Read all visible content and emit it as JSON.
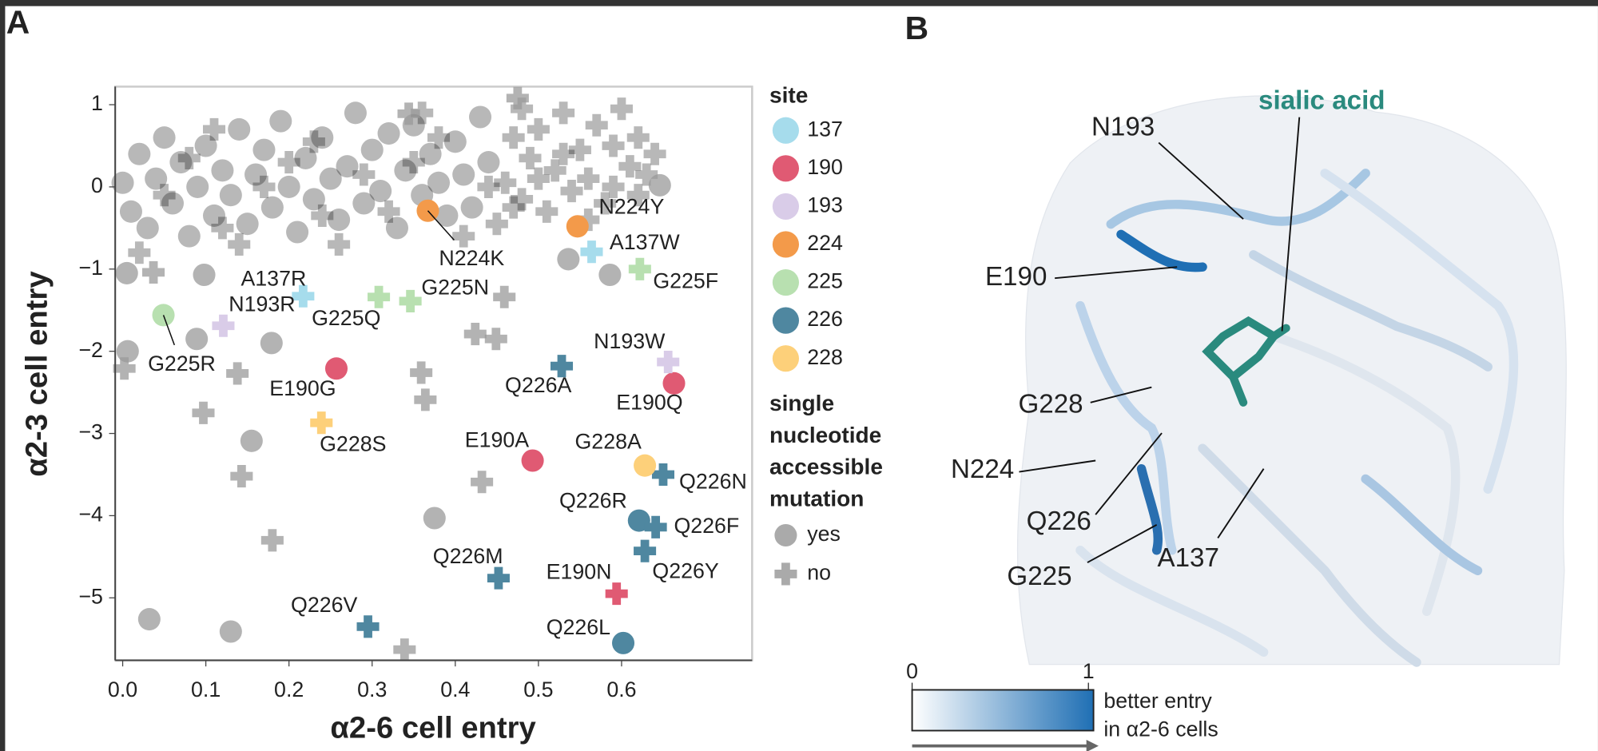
{
  "panel_a": {
    "label": "A"
  },
  "chart_data": {
    "type": "scatter",
    "xlabel": "α2-6 cell entry",
    "ylabel": "α2-3 cell entry",
    "xlim": [
      -0.009,
      0.757
    ],
    "ylim": [
      -5.76,
      1.22
    ],
    "xticks": [
      {
        "value": 0,
        "label": "0.0"
      },
      0.1,
      0.2,
      0.3,
      0.4,
      0.5,
      0.6
    ],
    "yticks": [
      1,
      0,
      {
        "value": -1,
        "label": "−1"
      },
      {
        "value": -2,
        "label": "−2"
      },
      {
        "value": -3,
        "label": "−3"
      },
      {
        "value": -4,
        "label": "−4"
      },
      {
        "value": -5,
        "label": "−5"
      }
    ],
    "series": [
      {
        "color": "#000000",
        "opacity": 0.28,
        "marker": "circle",
        "x": [
          0.0,
          0.01,
          0.02,
          0.03,
          0.04,
          0.05,
          0.06,
          0.07,
          0.08,
          0.09,
          0.1,
          0.11,
          0.12,
          0.13,
          0.14,
          0.15,
          0.16,
          0.17,
          0.18,
          0.19,
          0.2,
          0.21,
          0.22,
          0.23,
          0.24,
          0.25,
          0.26,
          0.27,
          0.28,
          0.29,
          0.3,
          0.31,
          0.32,
          0.33,
          0.34,
          0.35,
          0.36,
          0.37,
          0.38,
          0.39,
          0.4,
          0.41,
          0.42,
          0.43,
          0.44
        ],
        "y": [
          0.05,
          -0.3,
          0.4,
          -0.5,
          0.1,
          0.6,
          -0.2,
          0.3,
          -0.6,
          0.0,
          0.5,
          -0.35,
          0.2,
          -0.1,
          0.7,
          -0.45,
          0.15,
          0.45,
          -0.25,
          0.8,
          0.0,
          -0.55,
          0.35,
          -0.15,
          0.6,
          0.1,
          -0.4,
          0.25,
          0.9,
          -0.2,
          0.45,
          -0.05,
          0.65,
          -0.5,
          0.2,
          0.75,
          -0.1,
          0.4,
          0.05,
          -0.35,
          0.55,
          0.15,
          -0.25,
          0.85,
          0.3
        ]
      },
      {
        "color": "#000000",
        "opacity": 0.28,
        "marker": "plus",
        "x": [
          0.45,
          0.46,
          0.47,
          0.48,
          0.49,
          0.5,
          0.51,
          0.52,
          0.53,
          0.54,
          0.55,
          0.56,
          0.57,
          0.58,
          0.59,
          0.6,
          0.61,
          0.62,
          0.63,
          0.64,
          0.02,
          0.05,
          0.08,
          0.11,
          0.14,
          0.17,
          0.2,
          0.23,
          0.26,
          0.29,
          0.32,
          0.35,
          0.38,
          0.41,
          0.44,
          0.47,
          0.5,
          0.53,
          0.56,
          0.59,
          0.62,
          0.12,
          0.24,
          0.36,
          0.48
        ],
        "y": [
          -0.45,
          0.05,
          0.6,
          -0.15,
          0.35,
          0.7,
          -0.3,
          0.2,
          0.9,
          -0.05,
          0.45,
          0.1,
          0.75,
          -0.2,
          0.5,
          0.95,
          0.25,
          0.6,
          0.15,
          0.4,
          -0.8,
          -0.1,
          0.35,
          0.7,
          -0.7,
          0.0,
          0.3,
          0.55,
          -0.7,
          0.15,
          -0.3,
          0.3,
          0.6,
          -0.6,
          0.0,
          -0.25,
          0.1,
          0.4,
          -0.4,
          0.0,
          -0.1,
          -0.5,
          -0.35,
          0.9,
          0.95
        ]
      },
      {
        "color": "#999999",
        "opacity": 0.75,
        "marker": "circle",
        "x": [
          0.032,
          0.13,
          0.155,
          0.375,
          0.179,
          0.586,
          0.536,
          0.646,
          0.005,
          0.006,
          0.098,
          0.089
        ],
        "y": [
          -5.26,
          -5.41,
          -3.09,
          -4.03,
          -1.9,
          -1.07,
          -0.88,
          0.02,
          -1.05,
          -2.0,
          -1.07,
          -1.85
        ]
      },
      {
        "color": "#999999",
        "opacity": 0.75,
        "marker": "plus",
        "x": [
          0.18,
          0.143,
          0.432,
          0.339,
          0.364,
          0.359,
          0.449,
          0.424,
          0.459,
          0.475,
          0.097,
          0.138,
          0.002,
          0.037,
          0.344
        ],
        "y": [
          -4.3,
          -3.52,
          -3.59,
          -5.63,
          -2.59,
          -2.26,
          -1.85,
          -1.79,
          -1.34,
          1.08,
          -2.75,
          -2.27,
          -2.21,
          -1.04,
          0.89
        ]
      },
      {
        "name": "137",
        "color": "#a6dcec",
        "marker": [
          "plus",
          "plus"
        ],
        "x": [
          0.564,
          0.217
        ],
        "y": [
          -0.79,
          -1.33
        ],
        "labels": [
          "A137W",
          "A137R"
        ]
      },
      {
        "name": "190",
        "color": "#e05a73",
        "marker": [
          "circle",
          "circle",
          "circle",
          "plus"
        ],
        "x": [
          0.257,
          0.663,
          0.493,
          0.594
        ],
        "y": [
          -2.21,
          -2.39,
          -3.33,
          -4.95
        ],
        "labels": [
          "E190G",
          "E190Q",
          "E190A",
          "E190N"
        ]
      },
      {
        "name": "193",
        "color": "#d9cce8",
        "marker": [
          "plus",
          "plus"
        ],
        "x": [
          0.121,
          0.656
        ],
        "y": [
          -1.69,
          -2.13
        ],
        "labels": [
          "N193R",
          "N193W"
        ]
      },
      {
        "name": "224",
        "color": "#f39a4a",
        "marker": [
          "circle",
          "circle"
        ],
        "x": [
          0.367,
          0.547
        ],
        "y": [
          -0.29,
          -0.48
        ],
        "labels": [
          "N224K",
          "N224Y"
        ]
      },
      {
        "name": "225",
        "color": "#b8e0b0",
        "marker": [
          "plus",
          "plus",
          "plus",
          "circle"
        ],
        "x": [
          0.622,
          0.308,
          0.346,
          0.049
        ],
        "y": [
          -1.0,
          -1.34,
          -1.39,
          -1.56
        ],
        "labels": [
          "G225F",
          "G225Q",
          "G225N",
          "G225R"
        ]
      },
      {
        "name": "226",
        "color": "#4f87a0",
        "marker": [
          "plus",
          "plus",
          "circle",
          "plus",
          "plus",
          "plus",
          "plus",
          "circle"
        ],
        "x": [
          0.528,
          0.65,
          0.621,
          0.641,
          0.628,
          0.452,
          0.295,
          0.602
        ],
        "y": [
          -2.18,
          -3.5,
          -4.06,
          -4.14,
          -4.43,
          -4.76,
          -5.35,
          -5.55
        ],
        "labels": [
          "Q226A",
          "Q226N",
          "Q226R",
          "Q226F",
          "Q226Y",
          "Q226M",
          "Q226V",
          "Q226L"
        ]
      },
      {
        "name": "228",
        "color": "#fdd07a",
        "marker": [
          "plus",
          "circle"
        ],
        "x": [
          0.239,
          0.628
        ],
        "y": [
          -2.87,
          -3.39
        ],
        "labels": [
          "G228S",
          "G228A"
        ]
      }
    ],
    "legend": {
      "title": "site",
      "shape_title": [
        "single",
        "nucleotide",
        "accessible",
        "mutation"
      ],
      "shapes": [
        {
          "label": "yes",
          "marker": "circle",
          "color": "#aaaaaa"
        },
        {
          "label": "no",
          "marker": "plus",
          "color": "#aaaaaa"
        }
      ]
    }
  },
  "panel_b": {
    "label": "B",
    "ligand": "sialic acid",
    "residues": [
      "N193",
      "E190",
      "G228",
      "N224",
      "Q226",
      "G225",
      "A137"
    ],
    "colorbar": {
      "ticks": [
        0,
        1
      ],
      "label": [
        "better entry",
        "in α2-6 cells"
      ]
    }
  }
}
